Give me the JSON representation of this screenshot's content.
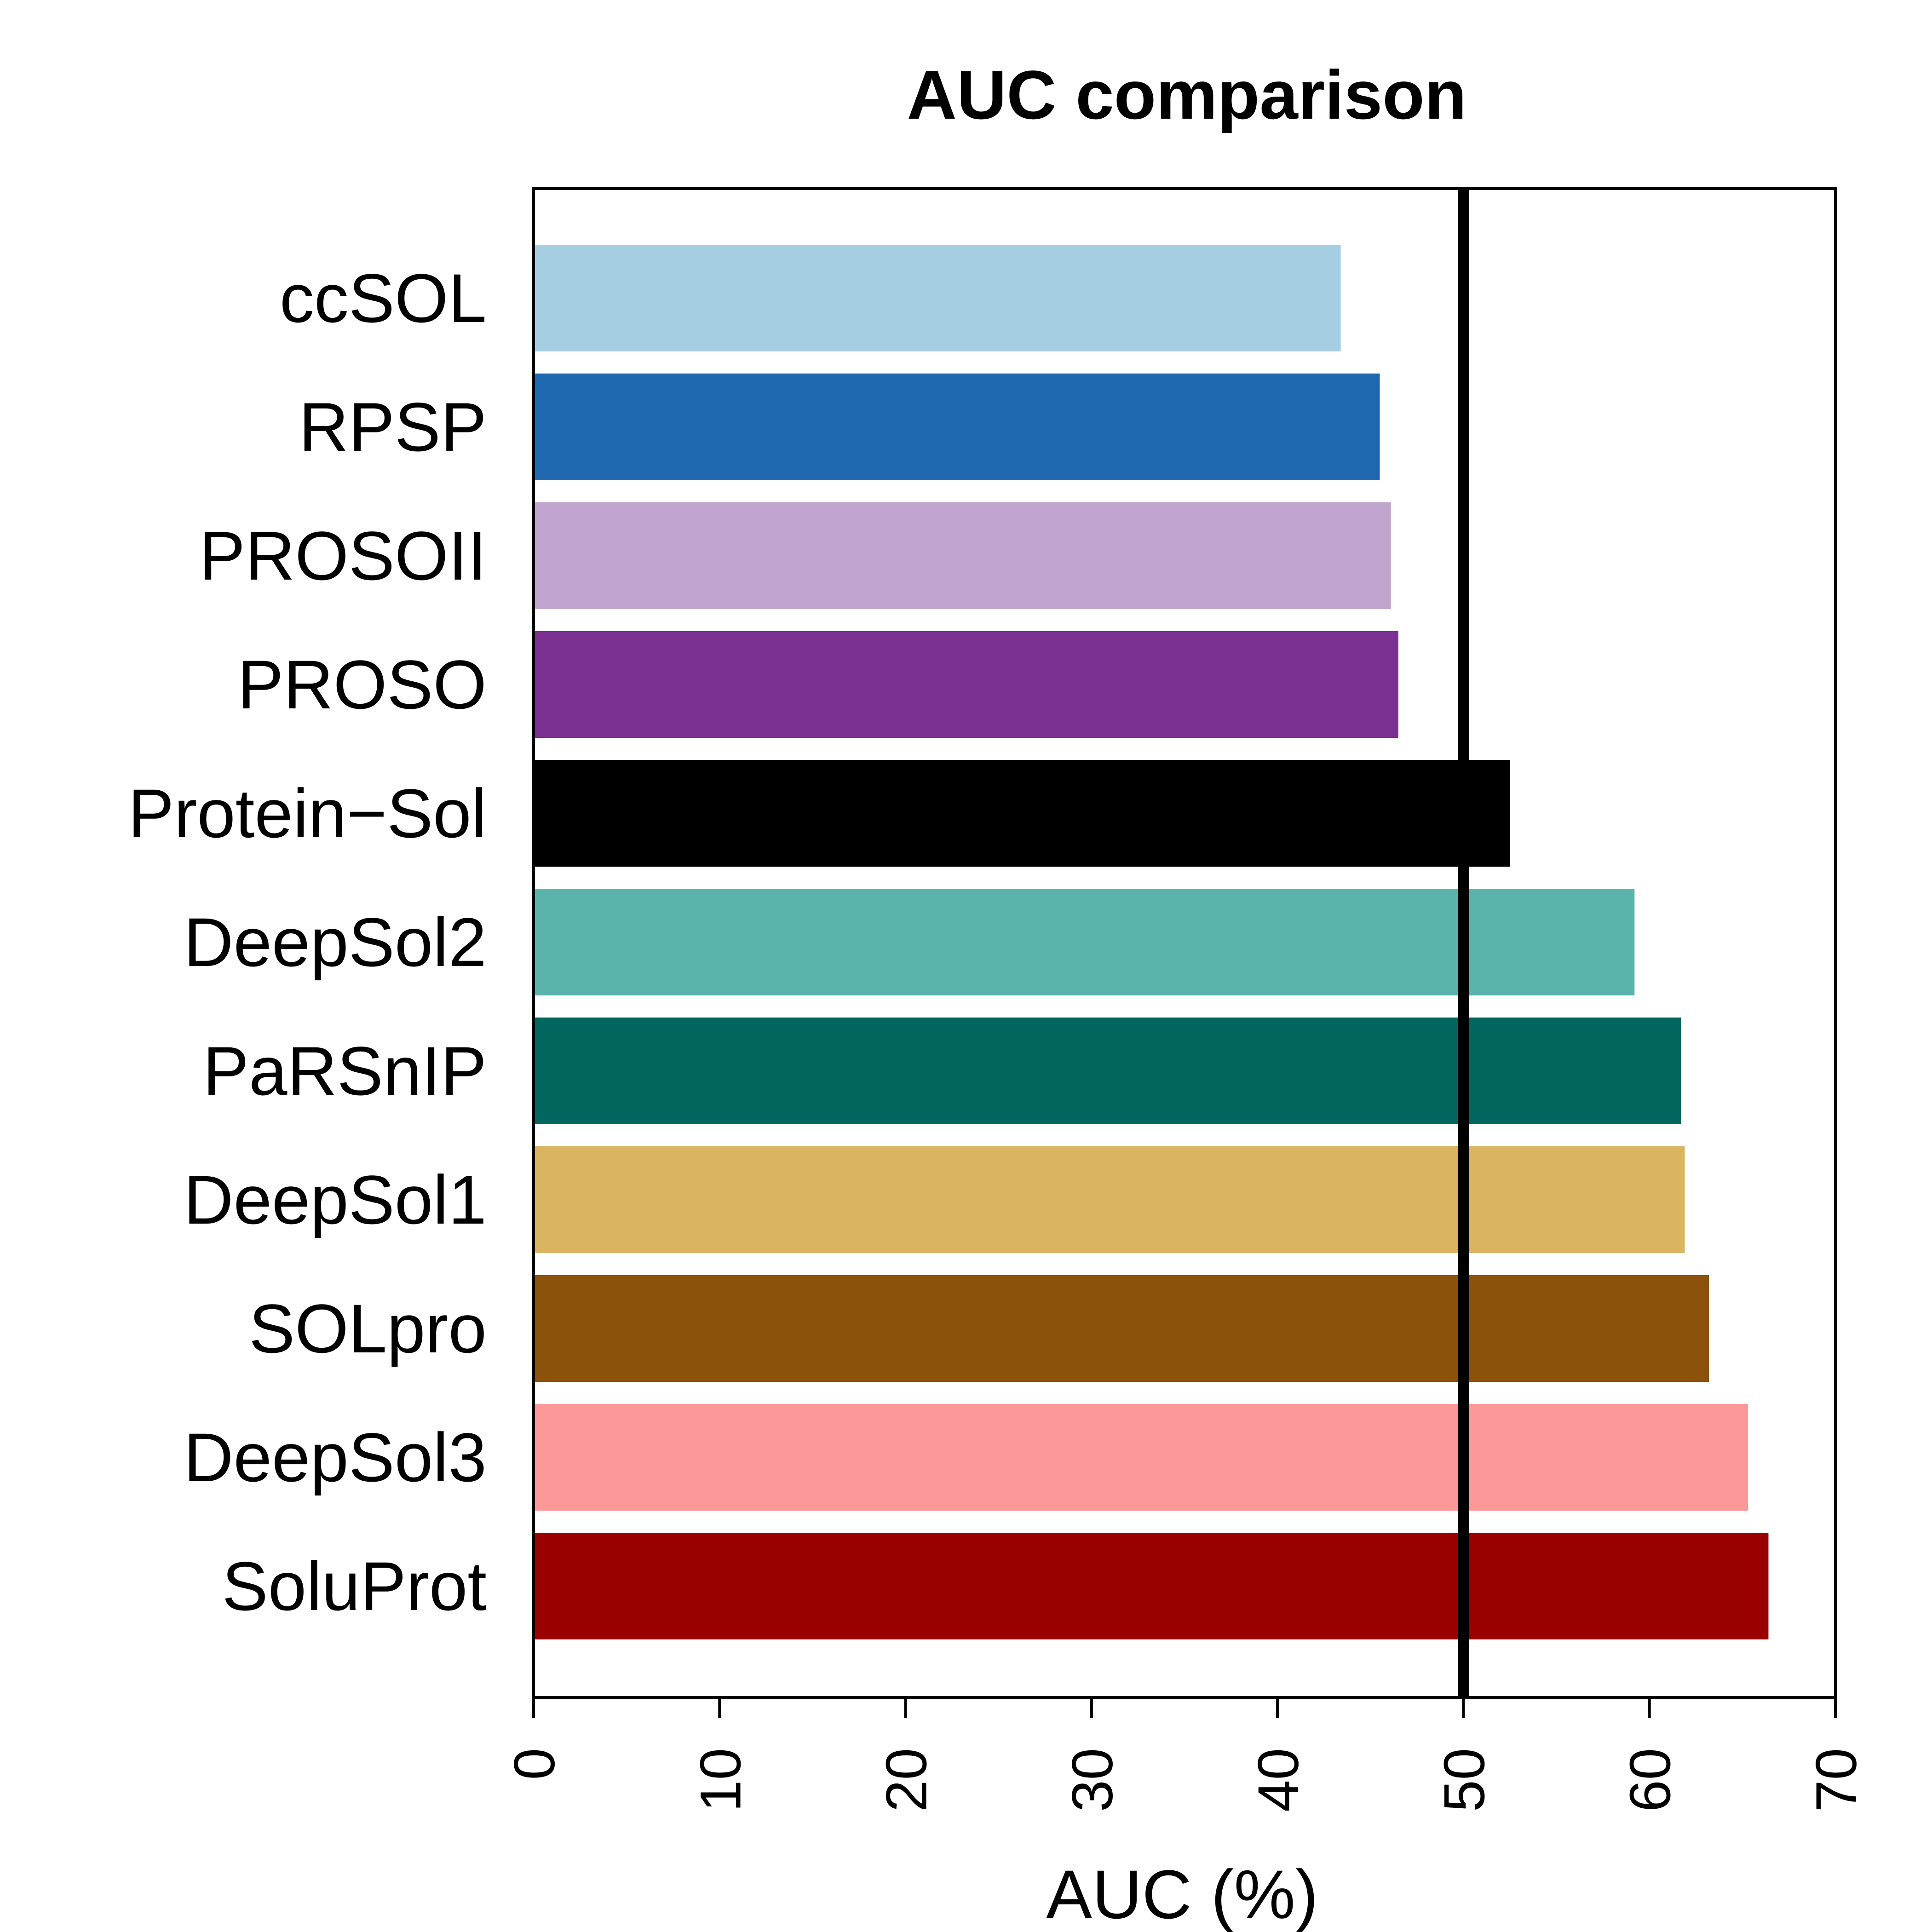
{
  "chart_data": {
    "type": "bar",
    "orientation": "horizontal",
    "title": "AUC comparison",
    "xlabel": "AUC (%)",
    "ylabel": "",
    "xlim": [
      0,
      70
    ],
    "x_ticks": [
      0,
      10,
      20,
      30,
      40,
      50,
      60,
      70
    ],
    "x_tick_labels": [
      "0",
      "10",
      "20",
      "30",
      "40",
      "50",
      "60",
      "70"
    ],
    "categories": [
      "ccSOL",
      "RPSP",
      "PROSOII",
      "PROSO",
      "Protein−Sol",
      "DeepSol2",
      "PaRSnIP",
      "DeepSol1",
      "SOLpro",
      "DeepSol3",
      "SoluProt"
    ],
    "values": [
      43.4,
      45.5,
      46.1,
      46.5,
      52.5,
      59.2,
      61.7,
      61.9,
      63.2,
      65.3,
      66.4
    ],
    "colors": [
      "#a6cee3",
      "#1f68b0",
      "#c2a5cf",
      "#7a3192",
      "#000000",
      "#5ab4ac",
      "#01665e",
      "#dbb461",
      "#8c510a",
      "#fd9899",
      "#990000"
    ],
    "reference_line": {
      "x": 50,
      "color": "#000000"
    },
    "grid": false,
    "legend": "none"
  }
}
